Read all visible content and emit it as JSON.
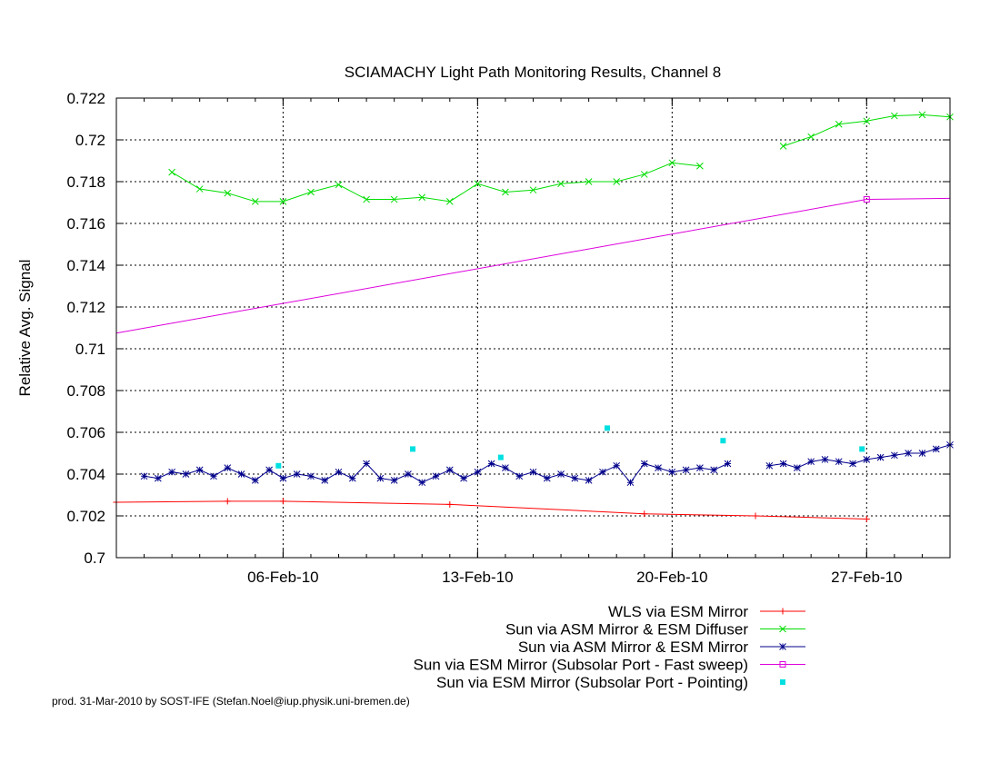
{
  "chart_data": {
    "type": "line",
    "title": "SCIAMACHY Light Path Monitoring Results, Channel 8",
    "xlabel": "",
    "ylabel": "Relative Avg. Signal",
    "xlim": [
      "2010-01-31",
      "2010-03-02"
    ],
    "ylim": [
      0.7,
      0.722
    ],
    "grid": true,
    "legend_position": "bottom-right",
    "y_ticks": [
      "0.7",
      "0.702",
      "0.704",
      "0.706",
      "0.708",
      "0.71",
      "0.712",
      "0.714",
      "0.716",
      "0.718",
      "0.72",
      "0.722"
    ],
    "x_ticks": [
      {
        "date": "2010-02-06",
        "label": "06-Feb-10"
      },
      {
        "date": "2010-02-13",
        "label": "13-Feb-10"
      },
      {
        "date": "2010-02-20",
        "label": "20-Feb-10"
      },
      {
        "date": "2010-02-27",
        "label": "27-Feb-10"
      }
    ],
    "series": [
      {
        "name": "WLS via ESM Mirror",
        "color": "#ff0000",
        "style": "line-points",
        "marker": "plus",
        "x": [
          "2010-01-31",
          "2010-02-04",
          "2010-02-06",
          "2010-02-12",
          "2010-02-19",
          "2010-02-23",
          "2010-02-27"
        ],
        "y": [
          0.70265,
          0.7027,
          0.7027,
          0.70255,
          0.7021,
          0.702,
          0.70185
        ]
      },
      {
        "name": "Sun via ASM Mirror & ESM Diffuser",
        "color": "#00dd00",
        "style": "line-points",
        "marker": "x",
        "gaps": true,
        "x": [
          "2010-02-02",
          "2010-02-03",
          "2010-02-04",
          "2010-02-05",
          "2010-02-06",
          "2010-02-07",
          "2010-02-08",
          "2010-02-09",
          "2010-02-10",
          "2010-02-11",
          "2010-02-12",
          "2010-02-13",
          "2010-02-14",
          "2010-02-15",
          "2010-02-16",
          "2010-02-17",
          "2010-02-18",
          "2010-02-19",
          "2010-02-20",
          "2010-02-21",
          "2010-02-22",
          null,
          "2010-02-24",
          "2010-02-25",
          "2010-02-26",
          "2010-02-27",
          "2010-02-28",
          "2010-03-01",
          "2010-03-02"
        ],
        "y": [
          0.71845,
          0.71765,
          0.71745,
          0.71705,
          0.71705,
          0.7175,
          0.71785,
          0.71715,
          0.71715,
          0.71725,
          0.71705,
          0.7179,
          0.7175,
          0.7176,
          0.7179,
          0.718,
          0.718,
          0.71835,
          0.7189,
          0.71875,
          null,
          null,
          0.7197,
          0.72015,
          0.72075,
          0.7209,
          0.72115,
          0.7212,
          0.7211
        ]
      },
      {
        "name": "Sun via ASM Mirror & ESM Mirror",
        "color": "#00008b",
        "style": "line-points",
        "marker": "star",
        "gaps": true,
        "x": [
          "2010-02-01",
          "2010-02-01T12:00",
          "2010-02-02",
          "2010-02-02T12:00",
          "2010-02-03",
          "2010-02-03T12:00",
          "2010-02-04",
          "2010-02-04T12:00",
          "2010-02-05",
          "2010-02-05T12:00",
          "2010-02-06",
          "2010-02-06T12:00",
          "2010-02-07",
          "2010-02-07T12:00",
          "2010-02-08",
          "2010-02-08T12:00",
          "2010-02-09",
          "2010-02-09T12:00",
          "2010-02-10",
          "2010-02-10T12:00",
          "2010-02-11",
          "2010-02-11T12:00",
          "2010-02-12",
          "2010-02-12T12:00",
          "2010-02-13",
          "2010-02-13T12:00",
          "2010-02-14",
          "2010-02-14T12:00",
          "2010-02-15",
          "2010-02-15T12:00",
          "2010-02-16",
          "2010-02-16T12:00",
          "2010-02-17",
          "2010-02-17T12:00",
          "2010-02-18",
          "2010-02-18T12:00",
          "2010-02-19",
          "2010-02-19T12:00",
          "2010-02-20",
          "2010-02-20T12:00",
          "2010-02-21",
          "2010-02-21T12:00",
          "2010-02-22",
          null,
          "2010-02-23T12:00",
          "2010-02-24",
          "2010-02-24T12:00",
          "2010-02-25",
          "2010-02-25T12:00",
          "2010-02-26",
          "2010-02-26T12:00",
          "2010-02-27",
          "2010-02-27T12:00",
          "2010-02-28",
          "2010-02-28T12:00",
          "2010-03-01",
          "2010-03-01T12:00",
          "2010-03-02"
        ],
        "y": [
          0.7039,
          0.7038,
          0.7041,
          0.704,
          0.7042,
          0.7039,
          0.7043,
          0.704,
          0.7037,
          0.7042,
          0.7038,
          0.704,
          0.7039,
          0.7037,
          0.7041,
          0.7038,
          0.7045,
          0.7038,
          0.7037,
          0.704,
          0.7036,
          0.7039,
          0.7042,
          0.7038,
          0.7041,
          0.7045,
          0.7043,
          0.7039,
          0.7041,
          0.7038,
          0.704,
          0.7038,
          0.7037,
          0.7041,
          0.7044,
          0.7036,
          0.7045,
          0.7043,
          0.7041,
          0.7042,
          0.7043,
          0.7042,
          0.7045,
          null,
          0.7044,
          0.7045,
          0.7043,
          0.7046,
          0.7047,
          0.7046,
          0.7045,
          0.7047,
          0.7048,
          0.7049,
          0.705,
          0.705,
          0.7052,
          0.7054
        ]
      },
      {
        "name": "Sun via ESM Mirror (Subsolar Port - Fast sweep)",
        "color": "#dd00dd",
        "style": "line-points",
        "marker": "square",
        "marker_at": [
          1
        ],
        "x": [
          "2010-01-31",
          "2010-02-27",
          "2010-03-02"
        ],
        "y": [
          0.71075,
          0.71715,
          0.7172
        ]
      },
      {
        "name": "Sun via ESM Mirror (Subsolar Port - Pointing)",
        "color": "#00e0e0",
        "style": "points",
        "marker": "filled-square",
        "x": [
          "2010-02-05T20:00",
          "2010-02-10T16:00",
          "2010-02-13T20:00",
          "2010-02-17T16:00",
          "2010-02-21T20:00",
          "2010-02-26T20:00"
        ],
        "y": [
          0.7044,
          0.7052,
          0.7048,
          0.7062,
          0.7056,
          0.7052
        ]
      }
    ]
  },
  "footer": {
    "credit": "prod. 31-Mar-2010 by SOST-IFE (Stefan.Noel@iup.physik.uni-bremen.de)"
  }
}
